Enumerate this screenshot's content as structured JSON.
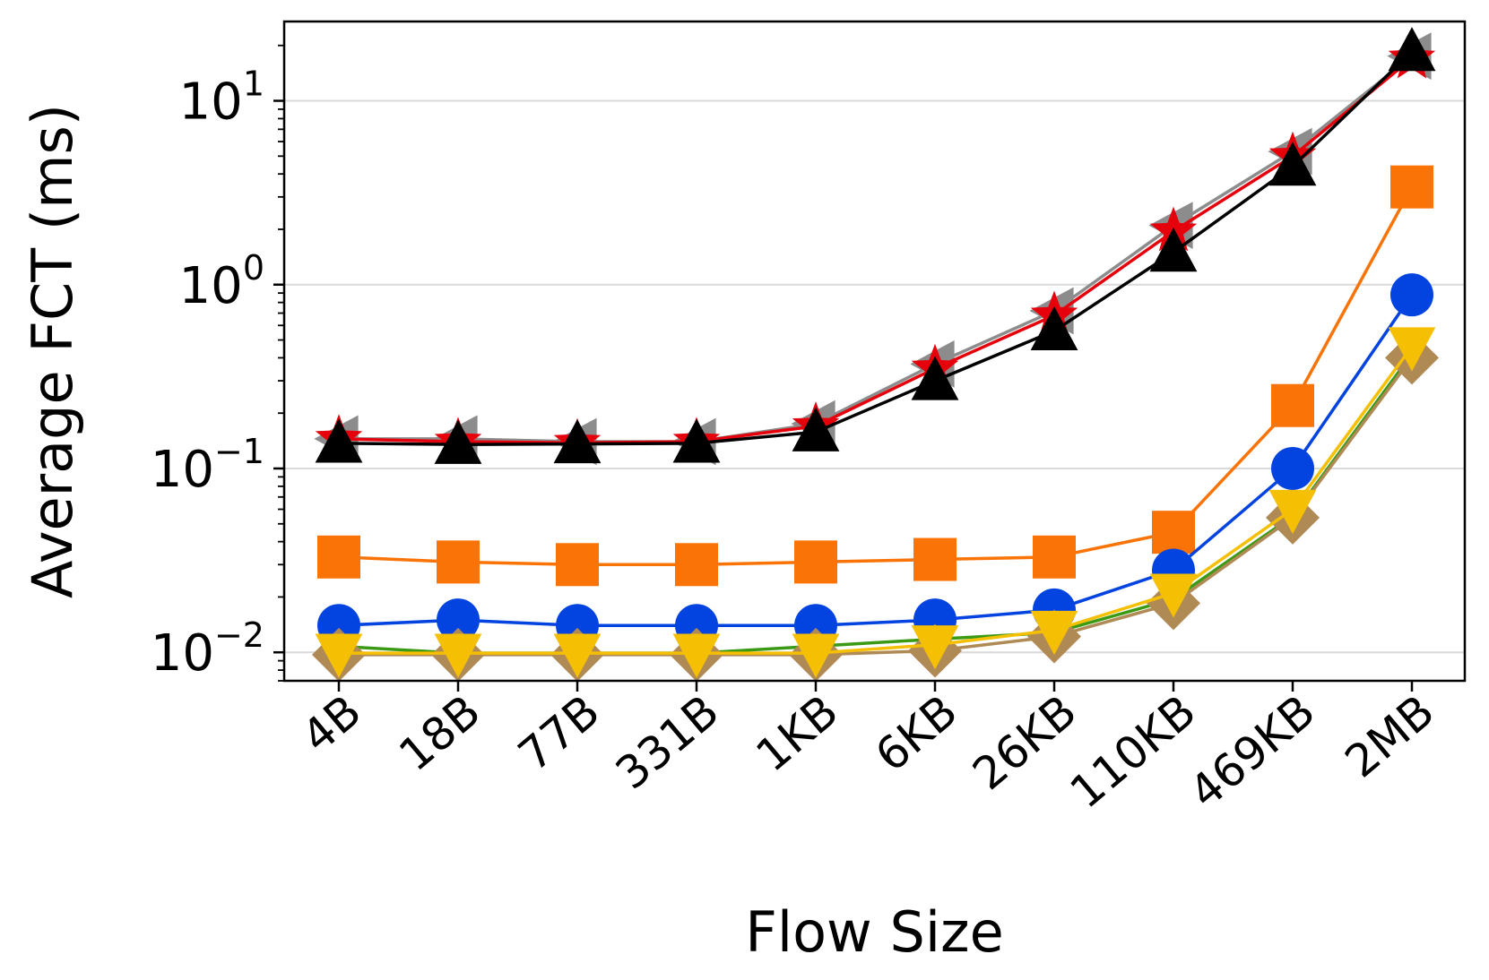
{
  "chart_data": {
    "type": "line",
    "xlabel": "Flow Size",
    "ylabel": "Average FCT (ms)",
    "yscale": "log",
    "ylim": [
      0.007,
      27
    ],
    "yticks": [
      {
        "value": 0.01,
        "base": "10",
        "exp": "−2"
      },
      {
        "value": 0.1,
        "base": "10",
        "exp": "−1"
      },
      {
        "value": 1,
        "base": "10",
        "exp": "0"
      },
      {
        "value": 10,
        "base": "10",
        "exp": "1"
      }
    ],
    "grid": "horizontal",
    "legend": "none",
    "categories": [
      "4B",
      "18B",
      "77B",
      "331B",
      "1KB",
      "6KB",
      "26KB",
      "110KB",
      "469KB",
      "2MB"
    ],
    "series": [
      {
        "color": "#8c8c8c",
        "marker": "triangle-left",
        "values": [
          0.145,
          0.145,
          0.14,
          0.14,
          0.175,
          0.37,
          0.72,
          2.1,
          5.3,
          17.5
        ]
      },
      {
        "color": "#e6000b",
        "marker": "star",
        "values": [
          0.145,
          0.14,
          0.138,
          0.14,
          0.17,
          0.35,
          0.68,
          1.95,
          5.0,
          17.0
        ]
      },
      {
        "color": "#000000",
        "marker": "triangle-up",
        "values": [
          0.137,
          0.135,
          0.136,
          0.137,
          0.158,
          0.3,
          0.56,
          1.5,
          4.4,
          18.5
        ]
      },
      {
        "color": "#f97306",
        "marker": "square",
        "values": [
          0.033,
          0.031,
          0.03,
          0.03,
          0.031,
          0.032,
          0.033,
          0.045,
          0.22,
          3.4
        ]
      },
      {
        "color": "#0343df",
        "marker": "circle",
        "values": [
          0.014,
          0.015,
          0.014,
          0.014,
          0.014,
          0.015,
          0.017,
          0.028,
          0.1,
          0.88
        ]
      },
      {
        "color": "#3a9a14",
        "marker": "x",
        "values": [
          0.0108,
          0.0099,
          0.0099,
          0.0099,
          0.0108,
          0.0118,
          0.0128,
          0.0195,
          0.055,
          0.42
        ]
      },
      {
        "color": "#b08a55",
        "marker": "diamond",
        "values": [
          0.0097,
          0.0097,
          0.0097,
          0.0097,
          0.0097,
          0.0102,
          0.0122,
          0.0185,
          0.054,
          0.4
        ]
      },
      {
        "color": "#f5bf03",
        "marker": "triangle-down",
        "values": [
          0.0099,
          0.0099,
          0.0099,
          0.0099,
          0.0099,
          0.011,
          0.0132,
          0.021,
          0.06,
          0.46
        ]
      }
    ]
  }
}
